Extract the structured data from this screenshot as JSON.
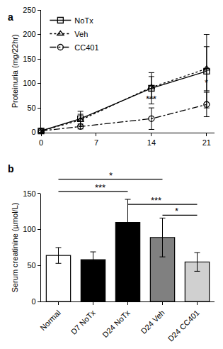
{
  "chart_data": [
    {
      "type": "line",
      "title": "a",
      "y_label": "Proteinuria (mg/22hr)",
      "x": [
        0,
        5,
        14,
        21
      ],
      "xlim": [
        0,
        22
      ],
      "xticks": [
        0,
        7,
        14,
        21
      ],
      "ylim": [
        0,
        250
      ],
      "yticks": [
        0,
        50,
        100,
        150,
        200,
        250
      ],
      "legend": "upper left",
      "series": [
        {
          "name": "NoTx",
          "color": "#000000",
          "marker": "square-open",
          "line_style": "solid",
          "values": [
            3,
            28,
            90,
            125
          ],
          "errors": [
            2,
            15,
            32,
            75
          ]
        },
        {
          "name": "Veh",
          "color": "#000000",
          "marker": "triangle-up-open",
          "line_style": "dot",
          "values": [
            3,
            25,
            92,
            130
          ],
          "errors": [
            2,
            12,
            22,
            45
          ]
        },
        {
          "name": "CC401",
          "color": "#000000",
          "marker": "circle-open",
          "line_style": "dashdot",
          "values": [
            3,
            12,
            28,
            57
          ],
          "errors": [
            2,
            5,
            22,
            25
          ]
        }
      ],
      "annotations": [
        {
          "x": 14,
          "y": 55,
          "text": "***"
        },
        {
          "x": 21,
          "y": 88,
          "text": "*"
        }
      ]
    },
    {
      "type": "bar",
      "title": "b",
      "y_label": "Serum creatinine (µmol/L)",
      "categories": [
        "Normal",
        "D7 NoTx",
        "D24 NoTx",
        "D24 Veh",
        "D24 CC401"
      ],
      "values": [
        64,
        58,
        110,
        89,
        55
      ],
      "errors": [
        11,
        11,
        32,
        27,
        13
      ],
      "colors": [
        "#ffffff",
        "#000000",
        "#000000",
        "#808080",
        "#d0d0d0"
      ],
      "ylim": [
        0,
        150
      ],
      "yticks": [
        0,
        50,
        100,
        150
      ],
      "comparisons": [
        {
          "from": "Normal",
          "to": "D24 Veh",
          "y": 170,
          "text": "*"
        },
        {
          "from": "Normal",
          "to": "D24 NoTx",
          "y": 153,
          "text": "***"
        },
        {
          "from": "D24 NoTx",
          "to": "D24 CC401",
          "y": 135,
          "text": "***"
        },
        {
          "from": "D24 Veh",
          "to": "D24 CC401",
          "y": 120,
          "text": "*"
        }
      ]
    }
  ]
}
